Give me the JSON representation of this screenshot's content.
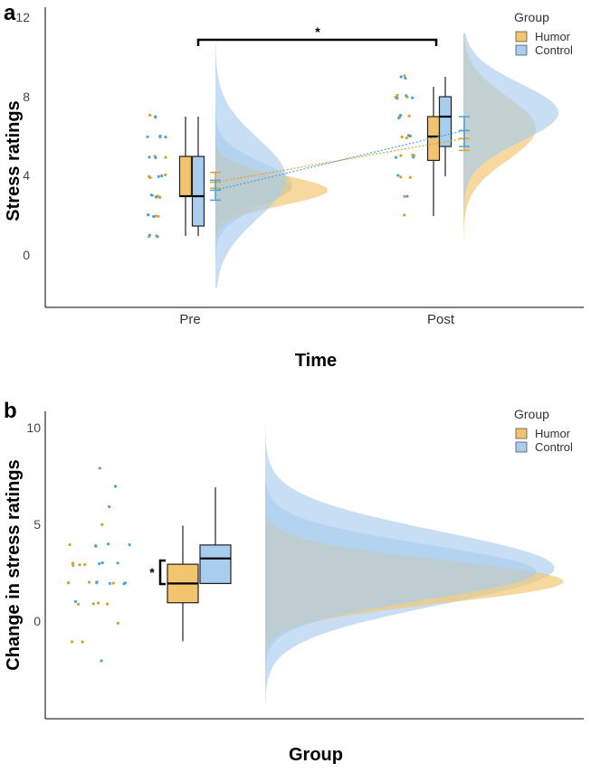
{
  "chart_data": [
    {
      "panel_label": "a",
      "type": "raincloud",
      "xlabel": "Time",
      "ylabel": "Stress ratings",
      "ylim": [
        -2,
        12
      ],
      "yticks": [
        "0",
        "4",
        "8",
        "12"
      ],
      "categories": [
        "Pre",
        "Post"
      ],
      "legend_title": "Group",
      "legend_position": "top-right",
      "significance_label": "*",
      "series": [
        {
          "name": "Humor",
          "color": "#f2c46d",
          "box": [
            {
              "min": 1,
              "q1": 3,
              "median": 3,
              "q3": 5,
              "max": 7
            },
            {
              "min": 2,
              "q1": 4.8,
              "median": 6,
              "q3": 7,
              "max": 8.5
            }
          ],
          "mean_ci": [
            [
              3.4,
              3.7,
              4.2
            ],
            [
              5.3,
              5.9,
              6.3
            ]
          ],
          "points": [
            [
              1,
              1,
              2,
              2,
              2,
              3,
              3,
              3,
              3,
              3,
              4,
              4,
              4,
              5,
              5,
              6,
              7,
              7
            ],
            [
              2,
              3,
              4,
              4,
              5,
              5,
              5,
              6,
              6,
              6,
              7,
              7,
              7,
              8,
              8,
              8,
              9
            ]
          ]
        },
        {
          "name": "Control",
          "color": "#a9cdee",
          "box": [
            {
              "min": 1,
              "q1": 1.5,
              "median": 3,
              "q3": 5,
              "max": 7
            },
            {
              "min": 4,
              "q1": 5.5,
              "median": 7,
              "q3": 8,
              "max": 9
            }
          ],
          "mean_ci": [
            [
              2.8,
              3.3,
              3.8
            ],
            [
              5.5,
              6.3,
              7.0
            ]
          ],
          "points": [
            [
              1,
              1,
              2,
              2,
              3,
              3,
              4,
              4,
              5,
              5,
              6,
              6,
              6,
              7
            ],
            [
              3,
              4,
              5,
              5,
              6,
              6,
              7,
              7,
              8,
              8,
              8,
              9,
              9
            ]
          ]
        }
      ]
    },
    {
      "panel_label": "b",
      "type": "raincloud",
      "xlabel": "Group",
      "ylabel": "Change in stress ratings",
      "ylim": [
        -5,
        11
      ],
      "yticks": [
        "0",
        "5",
        "10"
      ],
      "legend_title": "Group",
      "legend_position": "top-right",
      "significance_label": "*",
      "series": [
        {
          "name": "Humor",
          "color": "#f2c46d",
          "box": {
            "min": -1,
            "q1": 1,
            "median": 2,
            "q3": 3,
            "max": 5
          },
          "points": [
            -1,
            -1,
            0,
            1,
            1,
            1,
            1,
            2,
            2,
            2,
            2,
            3,
            3,
            3,
            3,
            4,
            4,
            5
          ]
        },
        {
          "name": "Control",
          "color": "#a9cdee",
          "box": {
            "min": 2,
            "q1": 2,
            "median": 3.3,
            "q3": 4,
            "max": 7
          },
          "points": [
            -2,
            1,
            2,
            2,
            2,
            2,
            3,
            3,
            3,
            4,
            4,
            4,
            6,
            7,
            8
          ]
        }
      ]
    }
  ]
}
